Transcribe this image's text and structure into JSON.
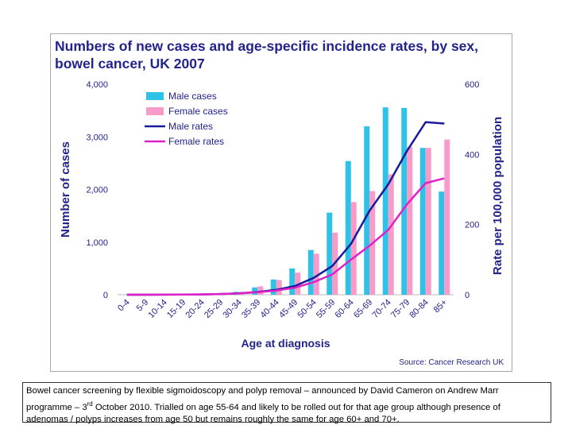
{
  "chart_data": {
    "type": "bar",
    "title_line1": "Numbers of new cases and age-specific incidence rates, by sex,",
    "title_line2": "bowel cancer, UK 2007",
    "xlabel": "Age at diagnosis",
    "ylabel": "Number of cases",
    "y2label": "Rate per 100,000 population",
    "source": "Source: Cancer Research UK",
    "ylim": [
      0,
      4000
    ],
    "y2lim": [
      0,
      600
    ],
    "yticks": [
      "0",
      "1,000",
      "2,000",
      "3,000",
      "4,000"
    ],
    "y2ticks": [
      "0",
      "200",
      "400",
      "600"
    ],
    "categories": [
      "0-4",
      "5-9",
      "10-14",
      "15-19",
      "20-24",
      "25-29",
      "30-34",
      "35-39",
      "40-44",
      "45-49",
      "50-54",
      "55-59",
      "60-64",
      "65-69",
      "70-74",
      "75-79",
      "80-84",
      "85+"
    ],
    "legend_position": "top-left",
    "series": [
      {
        "name": "Male cases",
        "kind": "bar",
        "axis": "left",
        "color": "#2fc1e6",
        "values": [
          2,
          2,
          3,
          5,
          12,
          25,
          55,
          140,
          290,
          500,
          850,
          1560,
          2540,
          3200,
          3560,
          3550,
          2790,
          1960
        ]
      },
      {
        "name": "Female cases",
        "kind": "bar",
        "axis": "left",
        "color": "#f79cc8",
        "values": [
          2,
          2,
          3,
          5,
          12,
          25,
          55,
          160,
          280,
          420,
          780,
          1180,
          1760,
          1970,
          2290,
          2810,
          2790,
          2950
        ]
      },
      {
        "name": "Male rates",
        "kind": "line",
        "axis": "right",
        "color": "#1a1a9c",
        "values": [
          0.1,
          0.1,
          0.3,
          0.5,
          1,
          2,
          4,
          8,
          14,
          25,
          48,
          82,
          145,
          240,
          315,
          410,
          492,
          488
        ]
      },
      {
        "name": "Female rates",
        "kind": "line",
        "axis": "right",
        "color": "#e020c8",
        "values": [
          0.1,
          0.1,
          0.3,
          0.5,
          1,
          2,
          4,
          7,
          12,
          20,
          36,
          58,
          100,
          140,
          185,
          258,
          318,
          332
        ]
      }
    ]
  },
  "caption": {
    "line1": "Bowel cancer screening by flexible sigmoidoscopy and polyp removal – announced by David Cameron on Andrew Marr",
    "line2_a": "programme – 3",
    "line2_sup": "rd",
    "line2_b": " October 2010. Trialled on age 55-64 and likely to be rolled out for that age group although presence of",
    "line3": "adenomas / polyps increases from age 50 but remains roughly the same for age 60+ and 70+."
  }
}
